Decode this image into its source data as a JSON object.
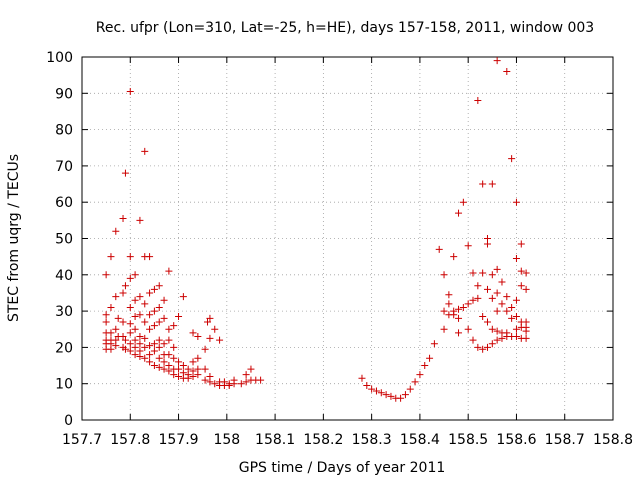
{
  "chart_data": {
    "type": "scatter",
    "title": "Rec. ufpr (Lon=310, Lat=-25, h=HE), days 157-158, 2011, window 003",
    "xlabel": "GPS time / Days of year 2011",
    "ylabel": "STEC from uqrg / TECUs",
    "xlim": [
      157.7,
      158.8
    ],
    "ylim": [
      0,
      100
    ],
    "xticks": [
      157.7,
      157.8,
      157.9,
      158.0,
      158.1,
      158.2,
      158.3,
      158.4,
      158.5,
      158.6,
      158.7,
      158.8
    ],
    "xtick_labels": [
      "157.7",
      "157.8",
      "157.9",
      "158",
      "158.1",
      "158.2",
      "158.3",
      "158.4",
      "158.5",
      "158.6",
      "158.7",
      "158.8"
    ],
    "yticks": [
      0,
      10,
      20,
      30,
      40,
      50,
      60,
      70,
      80,
      90,
      100
    ],
    "ytick_labels": [
      "0",
      "10",
      "20",
      "30",
      "40",
      "50",
      "60",
      "70",
      "80",
      "90",
      "100"
    ],
    "grid": true,
    "marker": "+",
    "color": "#cc0000",
    "series": [
      {
        "name": "STEC",
        "points": [
          [
            157.75,
            40.0
          ],
          [
            157.75,
            29.0
          ],
          [
            157.75,
            27.0
          ],
          [
            157.75,
            24.0
          ],
          [
            157.75,
            22.0
          ],
          [
            157.75,
            21.0
          ],
          [
            157.75,
            19.5
          ],
          [
            157.76,
            45.0
          ],
          [
            157.76,
            31.0
          ],
          [
            157.76,
            24.0
          ],
          [
            157.76,
            22.0
          ],
          [
            157.76,
            21.0
          ],
          [
            157.76,
            19.5
          ],
          [
            157.77,
            52.0
          ],
          [
            157.77,
            34.0
          ],
          [
            157.77,
            25.0
          ],
          [
            157.77,
            22.0
          ],
          [
            157.77,
            20.5
          ],
          [
            157.775,
            28.0
          ],
          [
            157.775,
            23.0
          ],
          [
            157.785,
            55.5
          ],
          [
            157.785,
            35.0
          ],
          [
            157.785,
            27.0
          ],
          [
            157.785,
            23.0
          ],
          [
            157.785,
            20.0
          ],
          [
            157.79,
            68.0
          ],
          [
            157.79,
            37.0
          ],
          [
            157.79,
            22.0
          ],
          [
            157.79,
            19.5
          ],
          [
            157.8,
            90.5
          ],
          [
            157.8,
            45.0
          ],
          [
            157.8,
            39.0
          ],
          [
            157.8,
            31.0
          ],
          [
            157.8,
            26.5
          ],
          [
            157.8,
            24.0
          ],
          [
            157.8,
            21.0
          ],
          [
            157.8,
            19.0
          ],
          [
            157.81,
            40.0
          ],
          [
            157.81,
            33.0
          ],
          [
            157.81,
            28.5
          ],
          [
            157.81,
            25.0
          ],
          [
            157.81,
            22.0
          ],
          [
            157.81,
            20.0
          ],
          [
            157.81,
            18.0
          ],
          [
            157.82,
            55.0
          ],
          [
            157.82,
            34.0
          ],
          [
            157.82,
            29.0
          ],
          [
            157.82,
            23.0
          ],
          [
            157.82,
            21.0
          ],
          [
            157.82,
            19.0
          ],
          [
            157.82,
            17.5
          ],
          [
            157.83,
            74.0
          ],
          [
            157.83,
            45.0
          ],
          [
            157.83,
            32.0
          ],
          [
            157.83,
            27.0
          ],
          [
            157.83,
            22.5
          ],
          [
            157.83,
            20.0
          ],
          [
            157.83,
            17.0
          ],
          [
            157.84,
            45.0
          ],
          [
            157.84,
            35.0
          ],
          [
            157.84,
            29.0
          ],
          [
            157.84,
            25.0
          ],
          [
            157.84,
            20.5
          ],
          [
            157.84,
            18.0
          ],
          [
            157.84,
            16.0
          ],
          [
            157.85,
            36.0
          ],
          [
            157.85,
            30.0
          ],
          [
            157.85,
            26.0
          ],
          [
            157.85,
            21.0
          ],
          [
            157.85,
            19.0
          ],
          [
            157.85,
            15.0
          ],
          [
            157.86,
            37.0
          ],
          [
            157.86,
            31.0
          ],
          [
            157.86,
            27.0
          ],
          [
            157.86,
            22.0
          ],
          [
            157.86,
            20.0
          ],
          [
            157.86,
            17.0
          ],
          [
            157.86,
            14.5
          ],
          [
            157.87,
            33.0
          ],
          [
            157.87,
            28.0
          ],
          [
            157.87,
            21.0
          ],
          [
            157.87,
            18.0
          ],
          [
            157.87,
            16.0
          ],
          [
            157.87,
            14.0
          ],
          [
            157.88,
            41.0
          ],
          [
            157.88,
            25.0
          ],
          [
            157.88,
            22.0
          ],
          [
            157.88,
            18.0
          ],
          [
            157.88,
            15.0
          ],
          [
            157.88,
            13.5
          ],
          [
            157.89,
            26.0
          ],
          [
            157.89,
            20.0
          ],
          [
            157.89,
            17.0
          ],
          [
            157.89,
            14.0
          ],
          [
            157.89,
            12.5
          ],
          [
            157.9,
            28.5
          ],
          [
            157.9,
            16.0
          ],
          [
            157.9,
            14.0
          ],
          [
            157.9,
            12.0
          ],
          [
            157.91,
            34.0
          ],
          [
            157.91,
            15.0
          ],
          [
            157.91,
            13.0
          ],
          [
            157.91,
            11.5
          ],
          [
            157.92,
            14.0
          ],
          [
            157.92,
            12.5
          ],
          [
            157.92,
            11.5
          ],
          [
            157.93,
            24.0
          ],
          [
            157.93,
            16.0
          ],
          [
            157.93,
            13.5
          ],
          [
            157.93,
            12.0
          ],
          [
            157.94,
            23.0
          ],
          [
            157.94,
            17.0
          ],
          [
            157.94,
            14.0
          ],
          [
            157.94,
            12.5
          ],
          [
            157.955,
            19.5
          ],
          [
            157.955,
            14.0
          ],
          [
            157.955,
            11.0
          ],
          [
            157.96,
            27.0
          ],
          [
            157.965,
            28.0
          ],
          [
            157.965,
            22.5
          ],
          [
            157.965,
            12.0
          ],
          [
            157.965,
            10.5
          ],
          [
            157.975,
            25.0
          ],
          [
            157.975,
            10.0
          ],
          [
            157.985,
            22.0
          ],
          [
            157.985,
            10.5
          ],
          [
            157.985,
            9.5
          ],
          [
            157.995,
            10.5
          ],
          [
            157.995,
            9.5
          ],
          [
            158.005,
            10.0
          ],
          [
            158.005,
            9.5
          ],
          [
            158.015,
            11.0
          ],
          [
            158.015,
            10.0
          ],
          [
            158.03,
            10.0
          ],
          [
            158.04,
            12.5
          ],
          [
            158.04,
            10.5
          ],
          [
            158.05,
            14.0
          ],
          [
            158.05,
            11.0
          ],
          [
            158.06,
            11.0
          ],
          [
            158.07,
            11.0
          ],
          [
            158.28,
            11.5
          ],
          [
            158.29,
            9.5
          ],
          [
            158.3,
            8.5
          ],
          [
            158.31,
            8.0
          ],
          [
            158.32,
            7.5
          ],
          [
            158.33,
            7.0
          ],
          [
            158.34,
            6.5
          ],
          [
            158.35,
            6.0
          ],
          [
            158.36,
            6.0
          ],
          [
            158.37,
            7.0
          ],
          [
            158.38,
            8.5
          ],
          [
            158.39,
            10.5
          ],
          [
            158.4,
            12.5
          ],
          [
            158.41,
            15.0
          ],
          [
            158.42,
            17.0
          ],
          [
            158.43,
            21.0
          ],
          [
            158.44,
            47.0
          ],
          [
            158.45,
            40.0
          ],
          [
            158.45,
            30.0
          ],
          [
            158.45,
            25.0
          ],
          [
            158.46,
            34.5
          ],
          [
            158.46,
            32.0
          ],
          [
            158.46,
            29.0
          ],
          [
            158.47,
            45.0
          ],
          [
            158.47,
            30.0
          ],
          [
            158.47,
            29.0
          ],
          [
            158.48,
            57.0
          ],
          [
            158.48,
            30.5
          ],
          [
            158.48,
            28.0
          ],
          [
            158.48,
            24.0
          ],
          [
            158.49,
            60.0
          ],
          [
            158.49,
            31.0
          ],
          [
            158.5,
            48.0
          ],
          [
            158.5,
            32.0
          ],
          [
            158.5,
            25.0
          ],
          [
            158.51,
            40.5
          ],
          [
            158.51,
            33.0
          ],
          [
            158.51,
            22.0
          ],
          [
            158.52,
            88.0
          ],
          [
            158.52,
            37.0
          ],
          [
            158.52,
            33.5
          ],
          [
            158.52,
            20.0
          ],
          [
            158.53,
            65.0
          ],
          [
            158.53,
            40.5
          ],
          [
            158.53,
            28.5
          ],
          [
            158.53,
            19.5
          ],
          [
            158.54,
            50.0
          ],
          [
            158.54,
            48.5
          ],
          [
            158.54,
            36.0
          ],
          [
            158.54,
            27.0
          ],
          [
            158.54,
            20.0
          ],
          [
            158.55,
            65.0
          ],
          [
            158.55,
            40.0
          ],
          [
            158.55,
            33.5
          ],
          [
            158.55,
            25.0
          ],
          [
            158.55,
            21.0
          ],
          [
            158.56,
            99.0
          ],
          [
            158.56,
            41.5
          ],
          [
            158.56,
            35.0
          ],
          [
            158.56,
            30.0
          ],
          [
            158.56,
            24.5
          ],
          [
            158.56,
            22.0
          ],
          [
            158.57,
            38.0
          ],
          [
            158.57,
            32.0
          ],
          [
            158.57,
            24.0
          ],
          [
            158.57,
            22.5
          ],
          [
            158.58,
            96.0
          ],
          [
            158.58,
            34.0
          ],
          [
            158.58,
            30.0
          ],
          [
            158.58,
            24.0
          ],
          [
            158.58,
            23.0
          ],
          [
            158.59,
            72.0
          ],
          [
            158.59,
            31.0
          ],
          [
            158.59,
            28.0
          ],
          [
            158.59,
            23.0
          ],
          [
            158.6,
            60.0
          ],
          [
            158.6,
            44.5
          ],
          [
            158.6,
            33.0
          ],
          [
            158.6,
            28.5
          ],
          [
            158.6,
            25.0
          ],
          [
            158.6,
            23.0
          ],
          [
            158.61,
            48.5
          ],
          [
            158.61,
            41.0
          ],
          [
            158.61,
            37.0
          ],
          [
            158.61,
            27.0
          ],
          [
            158.61,
            25.5
          ],
          [
            158.61,
            22.5
          ],
          [
            158.62,
            40.5
          ],
          [
            158.62,
            36.0
          ],
          [
            158.62,
            27.0
          ],
          [
            158.62,
            25.5
          ],
          [
            158.62,
            24.5
          ],
          [
            158.62,
            22.5
          ]
        ]
      }
    ]
  }
}
